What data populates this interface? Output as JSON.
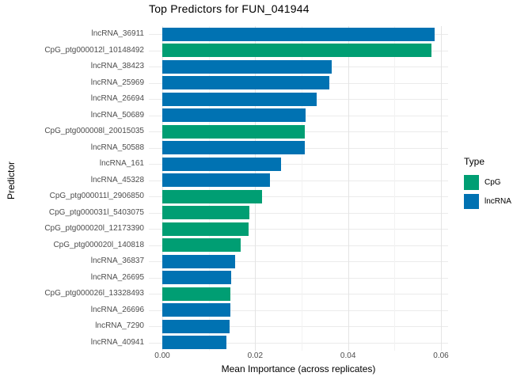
{
  "title": "Top Predictors for FUN_041944",
  "axes": {
    "x_label": "Mean Importance (across replicates)",
    "y_label": "Predictor"
  },
  "legend": {
    "title": "Type",
    "entries": [
      {
        "label": "CpG",
        "color": "#009E73"
      },
      {
        "label": "lncRNA",
        "color": "#0072B2"
      }
    ]
  },
  "chart_data": {
    "type": "bar",
    "orientation": "horizontal",
    "title": "Top Predictors for FUN_041944",
    "xlabel": "Mean Importance (across replicates)",
    "ylabel": "Predictor",
    "xlim": [
      0,
      0.06
    ],
    "x_major_ticks": [
      0.0,
      0.02,
      0.04,
      0.06
    ],
    "x_tick_labels": [
      "0.00",
      "0.02",
      "0.04",
      "0.06"
    ],
    "x_minor_gridlines": [
      0.01,
      0.03,
      0.05
    ],
    "grid": true,
    "legend_position": "right",
    "series_colors": {
      "CpG": "#009E73",
      "lncRNA": "#0072B2"
    },
    "bars": [
      {
        "label": "lncRNA_36911",
        "type": "lncRNA",
        "value": 0.0586
      },
      {
        "label": "CpG_ptg000012l_10148492",
        "type": "CpG",
        "value": 0.058
      },
      {
        "label": "lncRNA_38423",
        "type": "lncRNA",
        "value": 0.0364
      },
      {
        "label": "lncRNA_25969",
        "type": "lncRNA",
        "value": 0.036
      },
      {
        "label": "lncRNA_26694",
        "type": "lncRNA",
        "value": 0.0333
      },
      {
        "label": "lncRNA_50689",
        "type": "lncRNA",
        "value": 0.0309
      },
      {
        "label": "CpG_ptg000008l_20015035",
        "type": "CpG",
        "value": 0.0306
      },
      {
        "label": "lncRNA_50588",
        "type": "lncRNA",
        "value": 0.0306
      },
      {
        "label": "lncRNA_161",
        "type": "lncRNA",
        "value": 0.0256
      },
      {
        "label": "lncRNA_45328",
        "type": "lncRNA",
        "value": 0.0232
      },
      {
        "label": "CpG_ptg000011l_2906850",
        "type": "CpG",
        "value": 0.0215
      },
      {
        "label": "CpG_ptg000031l_5403075",
        "type": "CpG",
        "value": 0.0187
      },
      {
        "label": "CpG_ptg000020l_12173390",
        "type": "CpG",
        "value": 0.0186
      },
      {
        "label": "CpG_ptg000020l_140818",
        "type": "CpG",
        "value": 0.0168
      },
      {
        "label": "lncRNA_36837",
        "type": "lncRNA",
        "value": 0.0156
      },
      {
        "label": "lncRNA_26695",
        "type": "lncRNA",
        "value": 0.0148
      },
      {
        "label": "CpG_ptg000026l_13328493",
        "type": "CpG",
        "value": 0.0147
      },
      {
        "label": "lncRNA_26696",
        "type": "lncRNA",
        "value": 0.0146
      },
      {
        "label": "lncRNA_7290",
        "type": "lncRNA",
        "value": 0.0145
      },
      {
        "label": "lncRNA_40941",
        "type": "lncRNA",
        "value": 0.0138
      }
    ]
  }
}
